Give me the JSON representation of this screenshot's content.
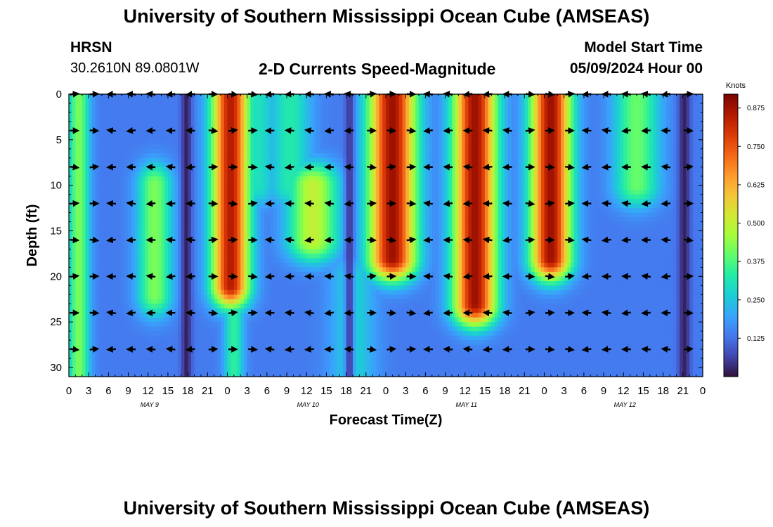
{
  "header": {
    "title": "University of Southern Mississippi Ocean Cube (AMSEAS)",
    "station": "HRSN",
    "coords": "30.2610N  89.0801W",
    "subtitle": "2-D Currents Speed-Magnitude",
    "start_label": "Model Start Time",
    "start_value": "05/09/2024 Hour 00"
  },
  "footer": {
    "title": "University of Southern Mississippi Ocean Cube (AMSEAS)"
  },
  "chart_data": {
    "type": "heatmap",
    "title": "2-D Currents Speed-Magnitude",
    "xlabel": "Forecast Time(Z)",
    "ylabel": "Depth (ft)",
    "x_unit": "hours since 05/09/2024 00Z",
    "xlim": [
      0,
      96
    ],
    "ylim": [
      0,
      31
    ],
    "x_ticks": [
      0,
      3,
      6,
      9,
      12,
      15,
      18,
      21,
      24,
      27,
      30,
      33,
      36,
      39,
      42,
      45,
      48,
      51,
      54,
      57,
      60,
      63,
      66,
      69,
      72,
      75,
      78,
      81,
      84,
      87,
      90,
      93,
      96
    ],
    "x_tick_labels": [
      "0",
      "3",
      "6",
      "9",
      "12",
      "15",
      "18",
      "21",
      "0",
      "3",
      "6",
      "9",
      "12",
      "15",
      "18",
      "21",
      "0",
      "3",
      "6",
      "9",
      "12",
      "15",
      "18",
      "21",
      "0",
      "3",
      "6",
      "9",
      "12",
      "15",
      "18",
      "21",
      "0"
    ],
    "y_ticks": [
      0,
      5,
      10,
      15,
      20,
      25,
      30
    ],
    "y_tick_labels": [
      "0",
      "5",
      "10",
      "15",
      "20",
      "25",
      "30"
    ],
    "day_labels": [
      {
        "x": 12,
        "label": "MAY 9"
      },
      {
        "x": 36,
        "label": "MAY 10"
      },
      {
        "x": 60,
        "label": "MAY 11"
      },
      {
        "x": 84,
        "label": "MAY 12"
      }
    ],
    "colorbar": {
      "label": "Knots",
      "min": 0,
      "max": 0.92,
      "ticks": [
        0.125,
        0.25,
        0.375,
        0.5,
        0.625,
        0.75,
        0.875
      ],
      "tick_labels": [
        "0.125",
        "0.250",
        "0.375",
        "0.500",
        "0.625",
        "0.750",
        "0.875"
      ]
    },
    "speed_model": {
      "description": "Approximate speed field: base level plus peaks, each peak covers depth range [d0,d1] centred at hour t with half width w (knots)",
      "base": 0.14,
      "peaks": [
        {
          "t": 1.5,
          "w": 1.6,
          "v": 0.42,
          "d0": 0,
          "d1": 31
        },
        {
          "t": 13,
          "w": 2.6,
          "v": 0.42,
          "d0": 10,
          "d1": 22
        },
        {
          "t": 24.5,
          "w": 2.8,
          "v": 0.85,
          "d0": 0,
          "d1": 21
        },
        {
          "t": 25,
          "w": 1.5,
          "v": 0.34,
          "d0": 20,
          "d1": 31
        },
        {
          "t": 28.5,
          "w": 3,
          "v": 0.3,
          "d0": 0,
          "d1": 10
        },
        {
          "t": 33.5,
          "w": 3.2,
          "v": 0.32,
          "d0": 0,
          "d1": 10
        },
        {
          "t": 37,
          "w": 3.8,
          "v": 0.5,
          "d0": 10,
          "d1": 16
        },
        {
          "t": 43,
          "w": 3.5,
          "v": 0.27,
          "d0": 20,
          "d1": 31
        },
        {
          "t": 49,
          "w": 3.5,
          "v": 0.88,
          "d0": 0,
          "d1": 18
        },
        {
          "t": 61.5,
          "w": 3.2,
          "v": 0.88,
          "d0": 0,
          "d1": 23
        },
        {
          "t": 73,
          "w": 3,
          "v": 0.88,
          "d0": 0,
          "d1": 18
        },
        {
          "t": 86,
          "w": 3.4,
          "v": 0.4,
          "d0": 0,
          "d1": 10
        }
      ],
      "lows": [
        {
          "t": 17.8,
          "w": 0.8,
          "v": 0.02
        },
        {
          "t": 42.5,
          "w": 0.7,
          "v": 0.05
        },
        {
          "t": 93.2,
          "w": 0.9,
          "v": 0.02
        }
      ]
    },
    "vectors": {
      "depths": [
        0,
        4,
        8,
        12,
        16,
        20,
        24,
        28
      ],
      "times_hours": [
        0,
        3,
        6,
        9,
        12,
        15,
        18,
        21,
        24,
        27,
        30,
        33,
        36,
        39,
        42,
        45,
        48,
        51,
        54,
        57,
        60,
        63,
        66,
        69,
        72,
        75,
        78,
        81,
        84,
        87,
        90,
        93
      ],
      "description": "Current direction arrows (E = flood, W = ebb) at each depth level and 3-hourly time"
    }
  }
}
